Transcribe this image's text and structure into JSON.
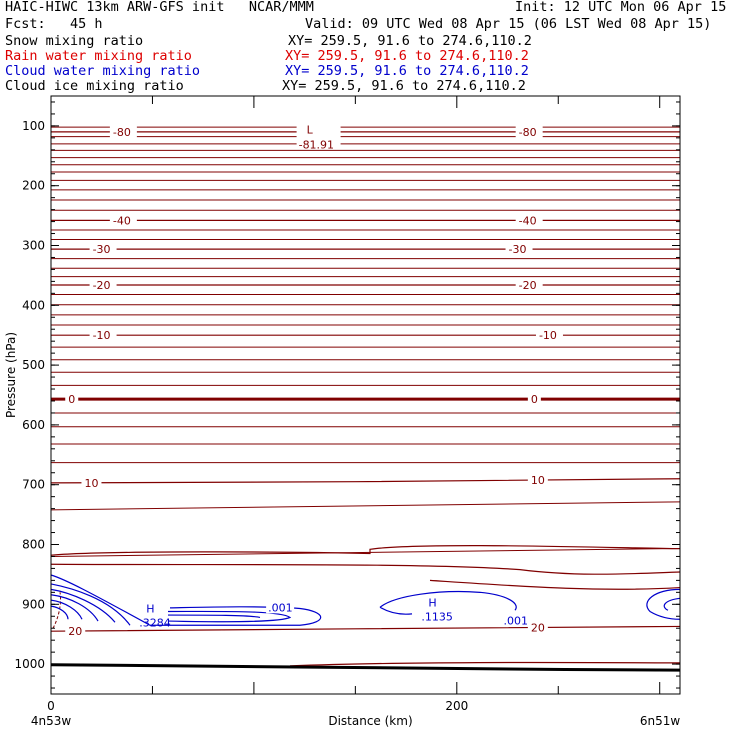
{
  "header": {
    "model_line": "HAIC-HIWC 13km ARW-GFS init",
    "center": "NCAR/MMM",
    "init_line": "Init: 12 UTC Mon 06 Apr 15",
    "fcst_line": "Fcst:   45 h",
    "valid_line": "Valid: 09 UTC Wed 08 Apr 15 (06 LST Wed 08 Apr 15)",
    "fields": [
      {
        "name": "Snow mixing ratio",
        "xy": "XY= 259.5, 91.6 to 274.6,110.2",
        "color": "#000000"
      },
      {
        "name": "Rain water mixing ratio",
        "xy": "XY= 259.5, 91.6 to 274.6,110.2",
        "color": "#dd0000"
      },
      {
        "name": "Cloud water mixing ratio",
        "xy": "XY= 259.5, 91.6 to 274.6,110.2",
        "color": "#0000cc"
      },
      {
        "name": "Cloud ice mixing ratio",
        "xy": "XY= 259.5, 91.6 to 274.6,110.2",
        "color": "#000000"
      }
    ]
  },
  "chart_data": {
    "type": "cross-section contour",
    "ylabel": "Pressure (hPa)",
    "xlabel": "Distance (km)",
    "y_ticks": [
      100,
      200,
      300,
      400,
      500,
      600,
      700,
      800,
      900,
      1000
    ],
    "ylim": [
      1050,
      50
    ],
    "x_ticks": [
      0,
      200
    ],
    "xlim": [
      0,
      310
    ],
    "x_endpoints": {
      "left": "4n53w",
      "right": "6n51w"
    },
    "temperature_color": "#800000",
    "cloud_water_color": "#0000cc",
    "temperature_contours": [
      {
        "label": "-80",
        "p": [
          {
            "d": 0,
            "p": 110
          },
          {
            "d": 310,
            "p": 110
          }
        ],
        "labels_at": [
          30,
          230
        ]
      },
      {
        "label": "-40",
        "p": [
          {
            "d": 0,
            "p": 258
          },
          {
            "d": 310,
            "p": 258
          }
        ],
        "labels_at": [
          30,
          230
        ]
      },
      {
        "label": "-30",
        "p": [
          {
            "d": 0,
            "p": 306
          },
          {
            "d": 310,
            "p": 306
          }
        ],
        "labels_at": [
          20,
          225
        ]
      },
      {
        "label": "-20",
        "p": [
          {
            "d": 0,
            "p": 366
          },
          {
            "d": 310,
            "p": 366
          }
        ],
        "labels_at": [
          20,
          230
        ]
      },
      {
        "label": "-10",
        "p": [
          {
            "d": 0,
            "p": 450
          },
          {
            "d": 310,
            "p": 450
          }
        ],
        "labels_at": [
          20,
          240
        ]
      },
      {
        "label": "0",
        "p": [
          {
            "d": 0,
            "p": 557
          },
          {
            "d": 310,
            "p": 557
          }
        ],
        "labels_at": [
          8,
          236
        ]
      },
      {
        "label": "10",
        "p": [
          {
            "d": 0,
            "p": 697
          },
          {
            "d": 150,
            "p": 695
          },
          {
            "d": 310,
            "p": 690
          }
        ],
        "labels_at": [
          16,
          236
        ]
      },
      {
        "label": "20",
        "p": [
          {
            "d": 0,
            "p": 945
          },
          {
            "d": 150,
            "p": 941
          },
          {
            "d": 310,
            "p": 937
          }
        ],
        "labels_at": [
          8,
          236
        ]
      }
    ],
    "temperature_min": {
      "mark": "L",
      "value": "-81.91",
      "d": 124,
      "p": 98
    },
    "cloud_water_maxima": [
      {
        "mark": "H",
        "value": ".3284",
        "d": 45,
        "p": 917
      },
      {
        "mark": "H",
        "value": ".1135",
        "d": 184,
        "p": 907
      }
    ],
    "cloud_water_labels": [
      {
        "value": ".001",
        "d": 107,
        "p": 905
      },
      {
        "value": ".001",
        "d": 223,
        "p": 927
      }
    ]
  }
}
